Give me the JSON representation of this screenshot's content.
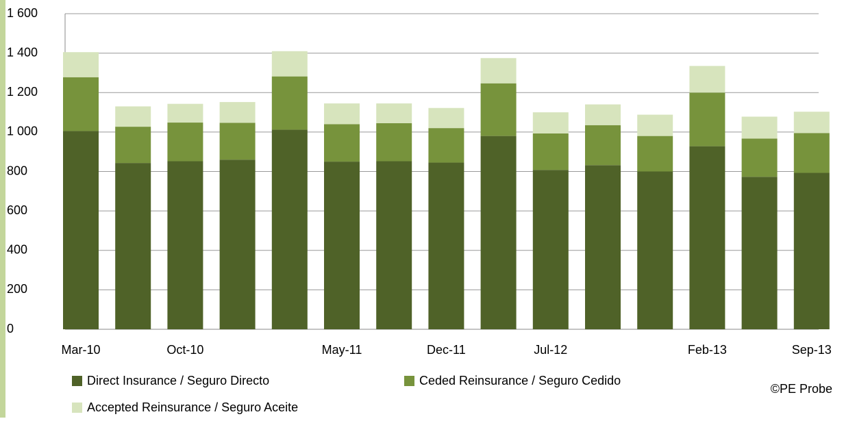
{
  "chart_data": {
    "type": "stacked-bar",
    "categories": [
      "Mar-10",
      null,
      "Oct-10",
      null,
      null,
      "May-11",
      null,
      "Dec-11",
      null,
      "Jul-12",
      null,
      null,
      "Feb-13",
      null,
      "Sep-13"
    ],
    "series": [
      {
        "name": "Direct Insurance / Seguro Directo",
        "color": "#4f6228",
        "values": [
          1005,
          843,
          852,
          860,
          1012,
          850,
          852,
          845,
          980,
          808,
          832,
          800,
          928,
          773,
          793
        ]
      },
      {
        "name": "Ceded Reinsurance / Seguro Cedido",
        "color": "#77933c",
        "values": [
          273,
          184,
          196,
          187,
          270,
          190,
          193,
          175,
          267,
          185,
          203,
          180,
          272,
          194,
          202
        ]
      },
      {
        "name": "Accepted Reinsurance / Seguro Aceite",
        "color": "#d7e4bd",
        "values": [
          127,
          103,
          95,
          105,
          128,
          105,
          100,
          102,
          128,
          107,
          105,
          108,
          135,
          111,
          108
        ]
      }
    ],
    "ylim": [
      0,
      1600
    ],
    "yticks": [
      0,
      200,
      400,
      600,
      800,
      {
        "value": 1000,
        "label": "1 000"
      },
      {
        "value": 1200,
        "label": "1 200"
      },
      {
        "value": 1400,
        "label": "1 400"
      },
      {
        "value": 1600,
        "label": "1 600"
      }
    ],
    "grid": true,
    "annotation": "©PE Probe"
  }
}
